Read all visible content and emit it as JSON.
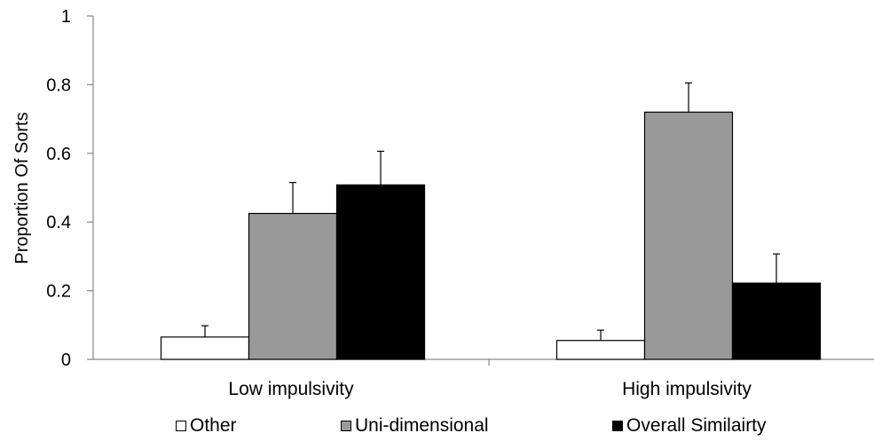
{
  "chart_data": {
    "type": "bar",
    "title": "",
    "xlabel": "",
    "ylabel": "Proportion Of Sorts",
    "ylim": [
      0,
      1
    ],
    "yticks": [
      "0",
      "0.2",
      "0.4",
      "0.6",
      "0.8",
      "1"
    ],
    "tick_values": [
      0,
      0.2,
      0.4,
      0.6,
      0.8,
      1
    ],
    "grid": false,
    "legend_position": "bottom",
    "categories": [
      "Low impulsivity",
      "High impulsivity"
    ],
    "series": [
      {
        "name": "Other",
        "values": [
          0.065,
          0.055
        ],
        "errors": [
          0.033,
          0.03
        ],
        "color": "#ffffff"
      },
      {
        "name": "Uni-dimensional",
        "values": [
          0.425,
          0.72
        ],
        "errors": [
          0.09,
          0.085
        ],
        "color": "#999999"
      },
      {
        "name": "Overall Similairty",
        "values": [
          0.508,
          0.222
        ],
        "errors": [
          0.098,
          0.085
        ],
        "color": "#000000"
      }
    ]
  }
}
